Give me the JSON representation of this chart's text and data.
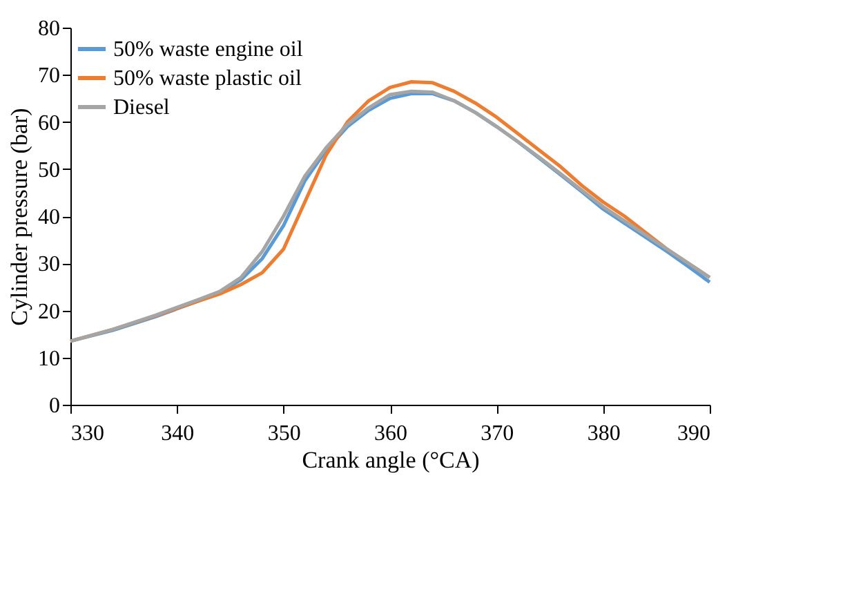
{
  "chart_data": {
    "type": "line",
    "xlabel": "Crank angle (°CA)",
    "ylabel": "Cylinder pressure (bar)",
    "x": [
      330,
      334,
      338,
      342,
      344,
      346,
      348,
      350,
      352,
      354,
      356,
      358,
      360,
      362,
      364,
      366,
      368,
      370,
      372,
      374,
      376,
      378,
      380,
      382,
      384,
      386,
      388,
      390
    ],
    "series": [
      {
        "name": "50% waste engine oil",
        "color": "#5b9bd5",
        "values": [
          13.5,
          15.8,
          18.7,
          22,
          23.8,
          26.5,
          31,
          38,
          47.5,
          54,
          59,
          62.5,
          65,
          66,
          66,
          64.5,
          62,
          59,
          55.8,
          52.3,
          48.8,
          45.2,
          41.5,
          38.5,
          35.5,
          32.5,
          29.3,
          26
        ]
      },
      {
        "name": "50% waste plastic oil",
        "color": "#ed7d31",
        "values": [
          13.5,
          16,
          18.9,
          22,
          23.5,
          25.5,
          28,
          33,
          43,
          53,
          60,
          64.5,
          67.3,
          68.5,
          68.3,
          66.5,
          64,
          61,
          57.5,
          54,
          50.5,
          46.5,
          43,
          40,
          36.5,
          33,
          30,
          27
        ]
      },
      {
        "name": "Diesel",
        "color": "#a5a5a5",
        "values": [
          13.5,
          16,
          19,
          22.3,
          24,
          27,
          32.5,
          40,
          48.5,
          54.5,
          59.5,
          63,
          65.8,
          66.5,
          66.3,
          64.5,
          62,
          59,
          55.8,
          52.5,
          49,
          45.5,
          42,
          39,
          36,
          33,
          30,
          27
        ]
      }
    ],
    "xlim": [
      330,
      390
    ],
    "xticks": [
      330,
      340,
      350,
      360,
      370,
      380,
      390
    ],
    "ylim": [
      0,
      80
    ],
    "yticks": [
      0,
      10,
      20,
      30,
      40,
      50,
      60,
      70,
      80
    ],
    "grid": false,
    "legend": "top left",
    "line_style": "solid"
  }
}
